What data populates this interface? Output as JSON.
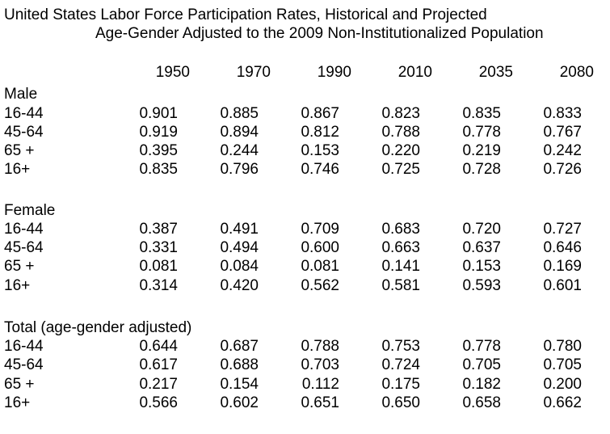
{
  "page": {
    "title": "United States Labor Force Participation Rates, Historical and Projected",
    "subtitle": "Age-Gender Adjusted to the 2009 Non-Institutionalized Population"
  },
  "table": {
    "years": [
      "1950",
      "1970",
      "1990",
      "2010",
      "2035",
      "2080"
    ],
    "sections": [
      {
        "label": "Male",
        "rows": [
          {
            "label": "16-44",
            "values": [
              "0.901",
              "0.885",
              "0.867",
              "0.823",
              "0.835",
              "0.833"
            ]
          },
          {
            "label": "45-64",
            "values": [
              "0.919",
              "0.894",
              "0.812",
              "0.788",
              "0.778",
              "0.767"
            ]
          },
          {
            "label": "65 +",
            "values": [
              "0.395",
              "0.244",
              "0.153",
              "0.220",
              "0.219",
              "0.242"
            ]
          },
          {
            "label": "16+",
            "values": [
              "0.835",
              "0.796",
              "0.746",
              "0.725",
              "0.728",
              "0.726"
            ]
          }
        ]
      },
      {
        "label": "Female",
        "rows": [
          {
            "label": "16-44",
            "values": [
              "0.387",
              "0.491",
              "0.709",
              "0.683",
              "0.720",
              "0.727"
            ]
          },
          {
            "label": "45-64",
            "values": [
              "0.331",
              "0.494",
              "0.600",
              "0.663",
              "0.637",
              "0.646"
            ]
          },
          {
            "label": "65 +",
            "values": [
              "0.081",
              "0.084",
              "0.081",
              "0.141",
              "0.153",
              "0.169"
            ]
          },
          {
            "label": "16+",
            "values": [
              "0.314",
              "0.420",
              "0.562",
              "0.581",
              "0.593",
              "0.601"
            ]
          }
        ]
      },
      {
        "label": "Total (age-gender adjusted)",
        "rows": [
          {
            "label": "16-44",
            "values": [
              "0.644",
              "0.687",
              "0.788",
              "0.753",
              "0.778",
              "0.780"
            ]
          },
          {
            "label": "45-64",
            "values": [
              "0.617",
              "0.688",
              "0.703",
              "0.724",
              "0.705",
              "0.705"
            ]
          },
          {
            "label": "65 +",
            "values": [
              "0.217",
              "0.154",
              "0.112",
              "0.175",
              "0.182",
              "0.200"
            ]
          },
          {
            "label": "16+",
            "values": [
              "0.566",
              "0.602",
              "0.651",
              "0.650",
              "0.658",
              "0.662"
            ]
          }
        ]
      }
    ]
  },
  "colors": {
    "text": "#000000",
    "background": "#ffffff"
  }
}
